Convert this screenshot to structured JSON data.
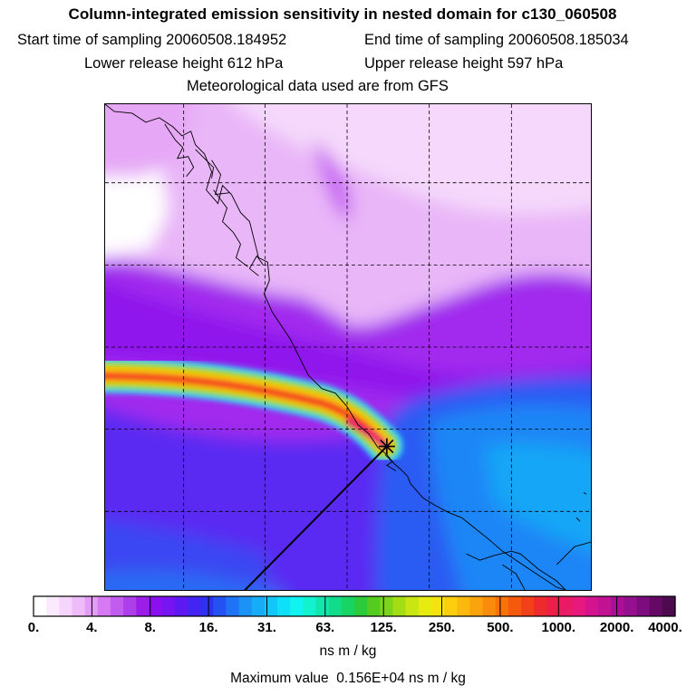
{
  "title": {
    "main": "Column-integrated emission sensitivity in nested domain for c130_060508",
    "start_label": "Start time of sampling",
    "start_value": "20060508.184952",
    "end_label": "End time of sampling",
    "end_value": "20060508.185034",
    "lower_label": "Lower release height",
    "lower_value": "612 hPa",
    "upper_label": "Upper release height",
    "upper_value": "597 hPa",
    "met": "Meteorological data used are from GFS"
  },
  "colorbar": {
    "tick_labels": [
      "0.",
      "4.",
      "8.",
      "16.",
      "31.",
      "63.",
      "125.",
      "250.",
      "500.",
      "1000.",
      "2000.",
      "4000."
    ],
    "colors": [
      "#ffffff",
      "#fbeafd",
      "#f5d5fb",
      "#eebdf9",
      "#e39df6",
      "#d57af3",
      "#c25cf0",
      "#ad3ee9",
      "#9a1ee8",
      "#8a10f0",
      "#7614f2",
      "#5e19f3",
      "#4424f3",
      "#3030f0",
      "#2452f2",
      "#1f73f5",
      "#1b92f6",
      "#17acf7",
      "#12c7f8",
      "#0fe0f9",
      "#10f3f0",
      "#12f2cf",
      "#10e7ad",
      "#10dc8a",
      "#18d464",
      "#2ccb3c",
      "#53cc1f",
      "#7cd51a",
      "#a3de15",
      "#c8e611",
      "#e6ec0f",
      "#f6e20e",
      "#fbcf0d",
      "#fcb90d",
      "#fba30c",
      "#f98c0b",
      "#f7730b",
      "#f5590c",
      "#f2401a",
      "#ee2a2f",
      "#eb1f47",
      "#ea1a64",
      "#e9187e",
      "#d4148f",
      "#c11294",
      "#ab0f96",
      "#95108e",
      "#7d0d7e",
      "#640a66",
      "#4d0a4f"
    ],
    "units": "ns m / kg"
  },
  "max_value": {
    "label": "Maximum value",
    "value": "0.156E+04",
    "units": "ns m / kg"
  },
  "map": {
    "receptor_marker": "receptor-cross-marker",
    "grid": "dashed-lat-lon-grid",
    "coastline": "coastline-outline"
  }
}
